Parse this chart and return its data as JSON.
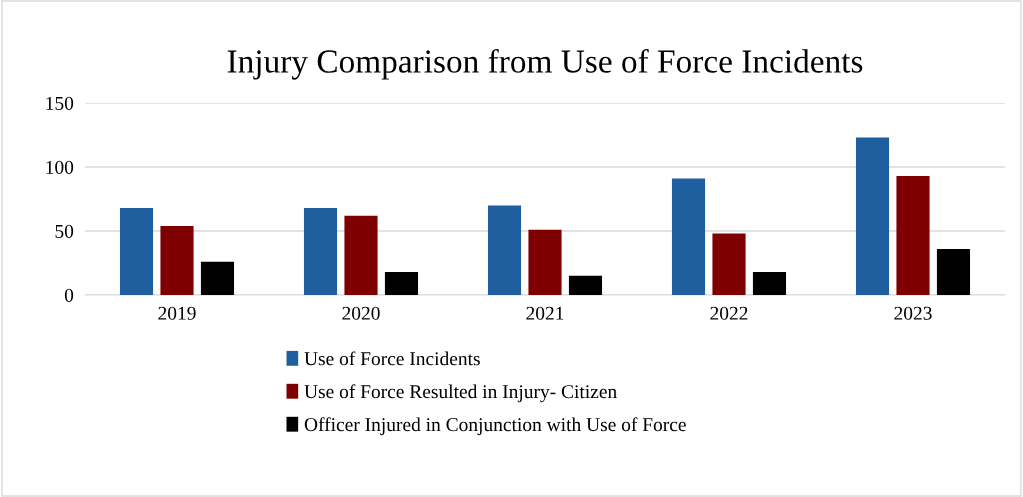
{
  "chart_data": {
    "type": "bar",
    "title": "Injury Comparison from Use of Force Incidents",
    "categories": [
      "2019",
      "2020",
      "2021",
      "2022",
      "2023"
    ],
    "series": [
      {
        "name": "Use of Force Incidents",
        "color": "#1f5fa0",
        "values": [
          68,
          68,
          70,
          91,
          123
        ]
      },
      {
        "name": "Use of Force Resulted in Injury- Citizen",
        "color": "#7f0000",
        "values": [
          54,
          62,
          51,
          48,
          93
        ]
      },
      {
        "name": "Officer Injured in Conjunction with Use of Force",
        "color": "#000000",
        "values": [
          26,
          18,
          15,
          18,
          36
        ]
      }
    ],
    "ylim": [
      0,
      150
    ],
    "yticks": [
      0,
      50,
      100,
      150
    ],
    "grid": "y",
    "legend": "bottom"
  }
}
